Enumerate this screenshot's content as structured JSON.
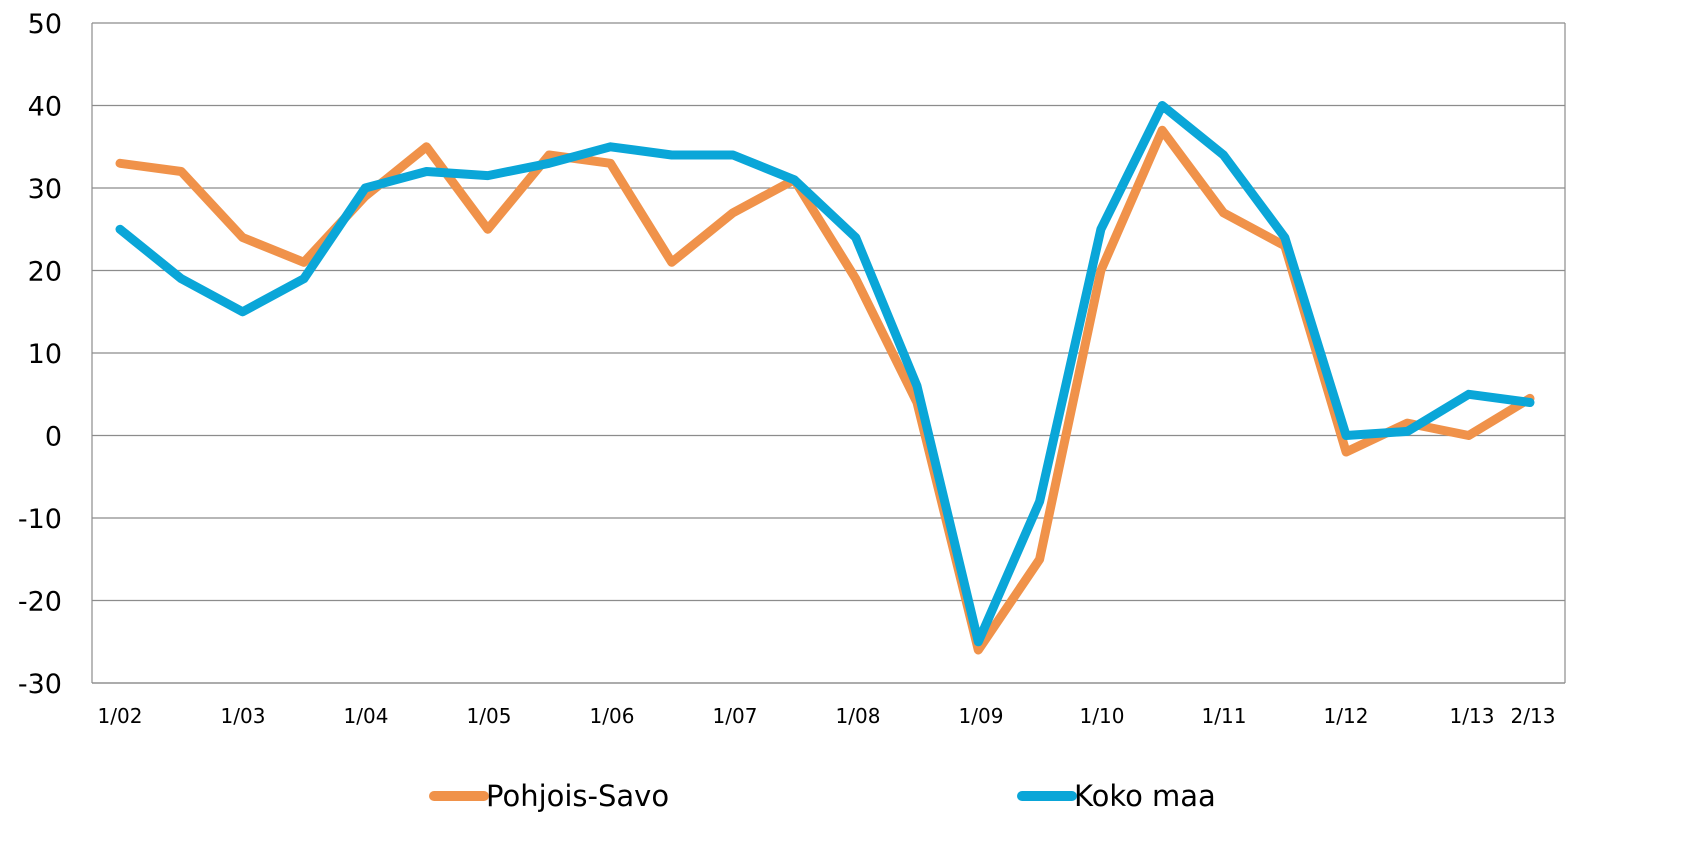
{
  "chart_data": {
    "type": "line",
    "title": "",
    "xlabel": "",
    "ylabel": "",
    "ylim": [
      -30,
      50
    ],
    "yticks": [
      "50",
      "40",
      "30",
      "20",
      "10",
      "0",
      "-10",
      "-20",
      "-30"
    ],
    "grid": true,
    "legend_position": "bottom",
    "x_tick_labels": [
      "1/02",
      "1/03",
      "1/04",
      "1/05",
      "1/06",
      "1/07",
      "1/08",
      "1/09",
      "1/10",
      "1/11",
      "1/12",
      "1/13",
      "2/13"
    ],
    "x": [
      "1/02",
      "7/02",
      "1/03",
      "7/03",
      "1/04",
      "7/04",
      "1/05",
      "7/05",
      "1/06",
      "7/06",
      "1/07",
      "7/07",
      "1/08",
      "7/08",
      "1/09",
      "7/09",
      "1/10",
      "7/10",
      "1/11",
      "7/11",
      "1/12",
      "7/12",
      "1/13",
      "2/13"
    ],
    "series": [
      {
        "name": "Pohjois-Savo",
        "color": "#F0924A",
        "values": [
          33,
          32,
          24,
          21,
          29,
          35,
          25,
          34,
          33,
          21,
          27,
          31,
          19,
          4,
          -26,
          -15,
          20,
          37,
          27,
          23,
          -2,
          1.5,
          0,
          4.5
        ]
      },
      {
        "name": "Koko maa",
        "color": "#0AA6D8",
        "values": [
          25,
          19,
          15,
          19,
          30,
          32,
          31.5,
          33,
          35,
          34,
          34,
          31,
          24,
          6,
          -25,
          -8,
          25,
          40,
          34,
          24,
          0,
          0.5,
          5,
          4
        ]
      }
    ]
  }
}
